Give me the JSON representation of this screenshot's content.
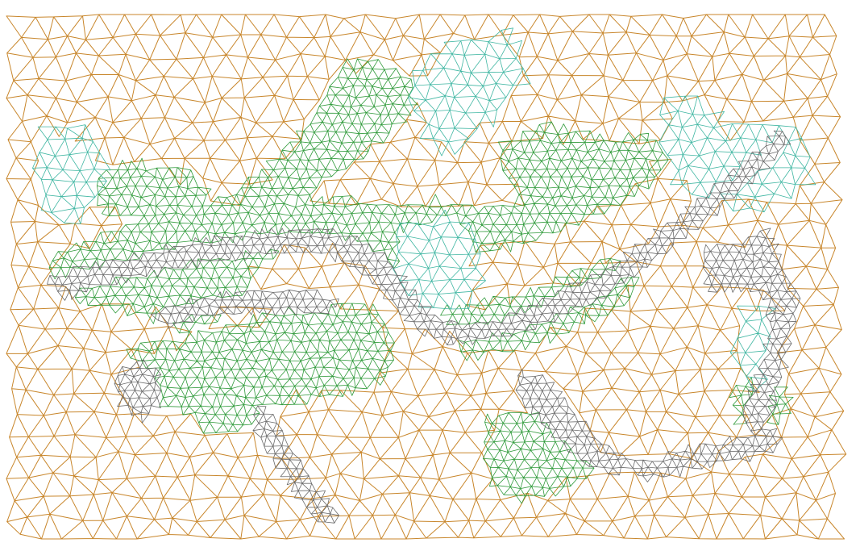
{
  "diagram": {
    "type": "triangulated-mesh",
    "classes": [
      {
        "name": "terrain",
        "color": "#c8862b"
      },
      {
        "name": "vegetation",
        "color": "#2f9a3a"
      },
      {
        "name": "water",
        "color": "#3fb6a2"
      },
      {
        "name": "road",
        "color": "#6b6b6b"
      }
    ]
  }
}
